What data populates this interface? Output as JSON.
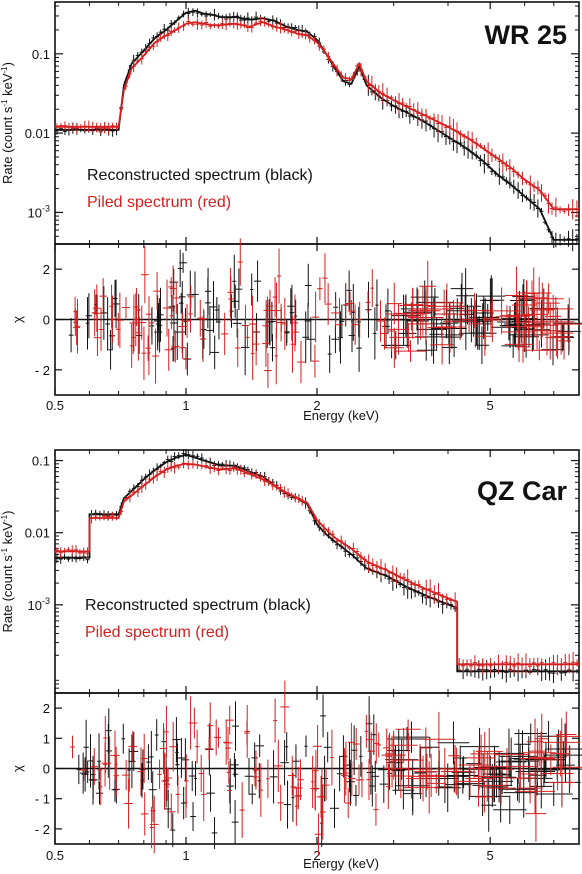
{
  "chart_data": [
    {
      "type": "line",
      "star_name": "WR 25",
      "xlabel": "Energy (keV)",
      "ylabel_parts": [
        "Rate (count s",
        "-1",
        " keV",
        "-1",
        ")"
      ],
      "xscale": "log",
      "yscale": "log",
      "xlim": [
        0.5,
        8.0
      ],
      "ylim": [
        0.0004,
        0.45
      ],
      "y_ticks": [
        {
          "value": 0.1,
          "label": "0.1"
        },
        {
          "value": 0.01,
          "label": "0.01"
        },
        {
          "value": 0.001,
          "label_base": "10",
          "label_exp": "-3"
        }
      ],
      "x_ticks": [
        {
          "value": 0.5,
          "label": "0.5"
        },
        {
          "value": 1,
          "label": "1"
        },
        {
          "value": 2,
          "label": "2"
        },
        {
          "value": 5,
          "label": "5"
        }
      ],
      "legend_position": "middle-left",
      "series": [
        {
          "name": "Reconstructed spectrum (black)",
          "color": "#111111",
          "points": [
            [
              0.5,
              0.011
            ],
            [
              0.7,
              0.011
            ],
            [
              0.72,
              0.04
            ],
            [
              0.75,
              0.075
            ],
            [
              0.8,
              0.11
            ],
            [
              0.85,
              0.16
            ],
            [
              0.9,
              0.2
            ],
            [
              0.95,
              0.26
            ],
            [
              1.0,
              0.33
            ],
            [
              1.05,
              0.35
            ],
            [
              1.1,
              0.32
            ],
            [
              1.15,
              0.31
            ],
            [
              1.2,
              0.29
            ],
            [
              1.3,
              0.29
            ],
            [
              1.4,
              0.27
            ],
            [
              1.5,
              0.28
            ],
            [
              1.6,
              0.26
            ],
            [
              1.7,
              0.22
            ],
            [
              1.8,
              0.2
            ],
            [
              1.9,
              0.19
            ],
            [
              2.0,
              0.15
            ],
            [
              2.1,
              0.1
            ],
            [
              2.2,
              0.065
            ],
            [
              2.3,
              0.045
            ],
            [
              2.4,
              0.042
            ],
            [
              2.5,
              0.07
            ],
            [
              2.6,
              0.04
            ],
            [
              2.8,
              0.028
            ],
            [
              3.0,
              0.022
            ],
            [
              3.3,
              0.017
            ],
            [
              3.6,
              0.013
            ],
            [
              4.0,
              0.009
            ],
            [
              4.4,
              0.0065
            ],
            [
              4.8,
              0.0045
            ],
            [
              5.2,
              0.003
            ],
            [
              5.6,
              0.0022
            ],
            [
              6.0,
              0.0016
            ],
            [
              6.5,
              0.0011
            ],
            [
              7.0,
              0.00045
            ],
            [
              8.0,
              0.00045
            ]
          ]
        },
        {
          "name": "Piled spectrum (red)",
          "color": "#d42020",
          "points": [
            [
              0.5,
              0.012
            ],
            [
              0.7,
              0.012
            ],
            [
              0.72,
              0.035
            ],
            [
              0.75,
              0.065
            ],
            [
              0.8,
              0.095
            ],
            [
              0.85,
              0.14
            ],
            [
              0.9,
              0.17
            ],
            [
              0.95,
              0.2
            ],
            [
              1.0,
              0.24
            ],
            [
              1.05,
              0.25
            ],
            [
              1.1,
              0.24
            ],
            [
              1.15,
              0.23
            ],
            [
              1.2,
              0.23
            ],
            [
              1.3,
              0.24
            ],
            [
              1.4,
              0.22
            ],
            [
              1.5,
              0.25
            ],
            [
              1.6,
              0.22
            ],
            [
              1.7,
              0.2
            ],
            [
              1.8,
              0.18
            ],
            [
              1.9,
              0.17
            ],
            [
              2.0,
              0.14
            ],
            [
              2.1,
              0.1
            ],
            [
              2.2,
              0.07
            ],
            [
              2.3,
              0.05
            ],
            [
              2.4,
              0.048
            ],
            [
              2.5,
              0.075
            ],
            [
              2.6,
              0.045
            ],
            [
              2.8,
              0.032
            ],
            [
              3.0,
              0.026
            ],
            [
              3.3,
              0.02
            ],
            [
              3.6,
              0.016
            ],
            [
              4.0,
              0.012
            ],
            [
              4.4,
              0.009
            ],
            [
              4.8,
              0.0065
            ],
            [
              5.2,
              0.0048
            ],
            [
              5.6,
              0.0036
            ],
            [
              6.0,
              0.0026
            ],
            [
              6.5,
              0.0019
            ],
            [
              7.0,
              0.0011
            ],
            [
              8.0,
              0.0011
            ]
          ]
        }
      ],
      "residuals": {
        "ylabel": "χ",
        "ylim": [
          -3.0,
          3.0
        ],
        "y_ticks": [
          {
            "value": 2,
            "label": "2"
          },
          {
            "value": 0,
            "label": "0"
          },
          {
            "value": -2,
            "label": "- 2"
          }
        ],
        "zero_line": 0
      }
    },
    {
      "type": "line",
      "star_name": "QZ Car",
      "xlabel": "Energy (keV)",
      "ylabel_parts": [
        "Rate (count s",
        "-1",
        " keV",
        "-1",
        ")"
      ],
      "xscale": "log",
      "yscale": "log",
      "xlim": [
        0.5,
        8.0
      ],
      "ylim": [
        6e-05,
        0.14
      ],
      "y_ticks": [
        {
          "value": 0.1,
          "label": "0.1"
        },
        {
          "value": 0.01,
          "label": "0.01"
        },
        {
          "value": 0.001,
          "label_base": "10",
          "label_exp": "-3"
        }
      ],
      "x_ticks": [
        {
          "value": 0.5,
          "label": "0.5"
        },
        {
          "value": 1,
          "label": "1"
        },
        {
          "value": 2,
          "label": "2"
        },
        {
          "value": 5,
          "label": "5"
        }
      ],
      "legend_position": "middle-left",
      "series": [
        {
          "name": "Reconstructed spectrum (black)",
          "color": "#111111",
          "points": [
            [
              0.5,
              0.0045
            ],
            [
              0.6,
              0.0045
            ],
            [
              0.6,
              0.018
            ],
            [
              0.7,
              0.018
            ],
            [
              0.72,
              0.03
            ],
            [
              0.8,
              0.055
            ],
            [
              0.85,
              0.075
            ],
            [
              0.9,
              0.095
            ],
            [
              0.95,
              0.11
            ],
            [
              1.0,
              0.12
            ],
            [
              1.05,
              0.11
            ],
            [
              1.1,
              0.1
            ],
            [
              1.2,
              0.085
            ],
            [
              1.3,
              0.085
            ],
            [
              1.4,
              0.07
            ],
            [
              1.5,
              0.06
            ],
            [
              1.6,
              0.045
            ],
            [
              1.7,
              0.035
            ],
            [
              1.8,
              0.03
            ],
            [
              1.9,
              0.025
            ],
            [
              2.0,
              0.013
            ],
            [
              2.1,
              0.0095
            ],
            [
              2.2,
              0.0075
            ],
            [
              2.4,
              0.005
            ],
            [
              2.6,
              0.0032
            ],
            [
              2.9,
              0.0025
            ],
            [
              3.2,
              0.0018
            ],
            [
              3.6,
              0.0013
            ],
            [
              4.2,
              0.0009
            ],
            [
              4.2,
              0.00012
            ],
            [
              8.0,
              0.00012
            ]
          ]
        },
        {
          "name": "Piled spectrum (red)",
          "color": "#d42020",
          "points": [
            [
              0.5,
              0.0055
            ],
            [
              0.6,
              0.0055
            ],
            [
              0.6,
              0.016
            ],
            [
              0.7,
              0.016
            ],
            [
              0.72,
              0.027
            ],
            [
              0.8,
              0.045
            ],
            [
              0.85,
              0.06
            ],
            [
              0.9,
              0.075
            ],
            [
              0.95,
              0.085
            ],
            [
              1.0,
              0.09
            ],
            [
              1.05,
              0.088
            ],
            [
              1.1,
              0.083
            ],
            [
              1.2,
              0.075
            ],
            [
              1.3,
              0.078
            ],
            [
              1.4,
              0.065
            ],
            [
              1.5,
              0.055
            ],
            [
              1.6,
              0.045
            ],
            [
              1.7,
              0.036
            ],
            [
              1.8,
              0.03
            ],
            [
              1.9,
              0.026
            ],
            [
              2.0,
              0.015
            ],
            [
              2.1,
              0.011
            ],
            [
              2.2,
              0.0085
            ],
            [
              2.4,
              0.006
            ],
            [
              2.6,
              0.004
            ],
            [
              2.9,
              0.003
            ],
            [
              3.2,
              0.0022
            ],
            [
              3.6,
              0.0016
            ],
            [
              4.2,
              0.0011
            ],
            [
              4.2,
              0.00015
            ],
            [
              8.0,
              0.00015
            ]
          ]
        }
      ],
      "residuals": {
        "ylabel": "χ",
        "ylim": [
          -2.5,
          2.5
        ],
        "y_ticks": [
          {
            "value": 2,
            "label": "2"
          },
          {
            "value": 1,
            "label": "1"
          },
          {
            "value": 0,
            "label": "0"
          },
          {
            "value": -1,
            "label": "- 1"
          },
          {
            "value": -2,
            "label": "- 2"
          }
        ],
        "zero_line": 0
      }
    }
  ]
}
